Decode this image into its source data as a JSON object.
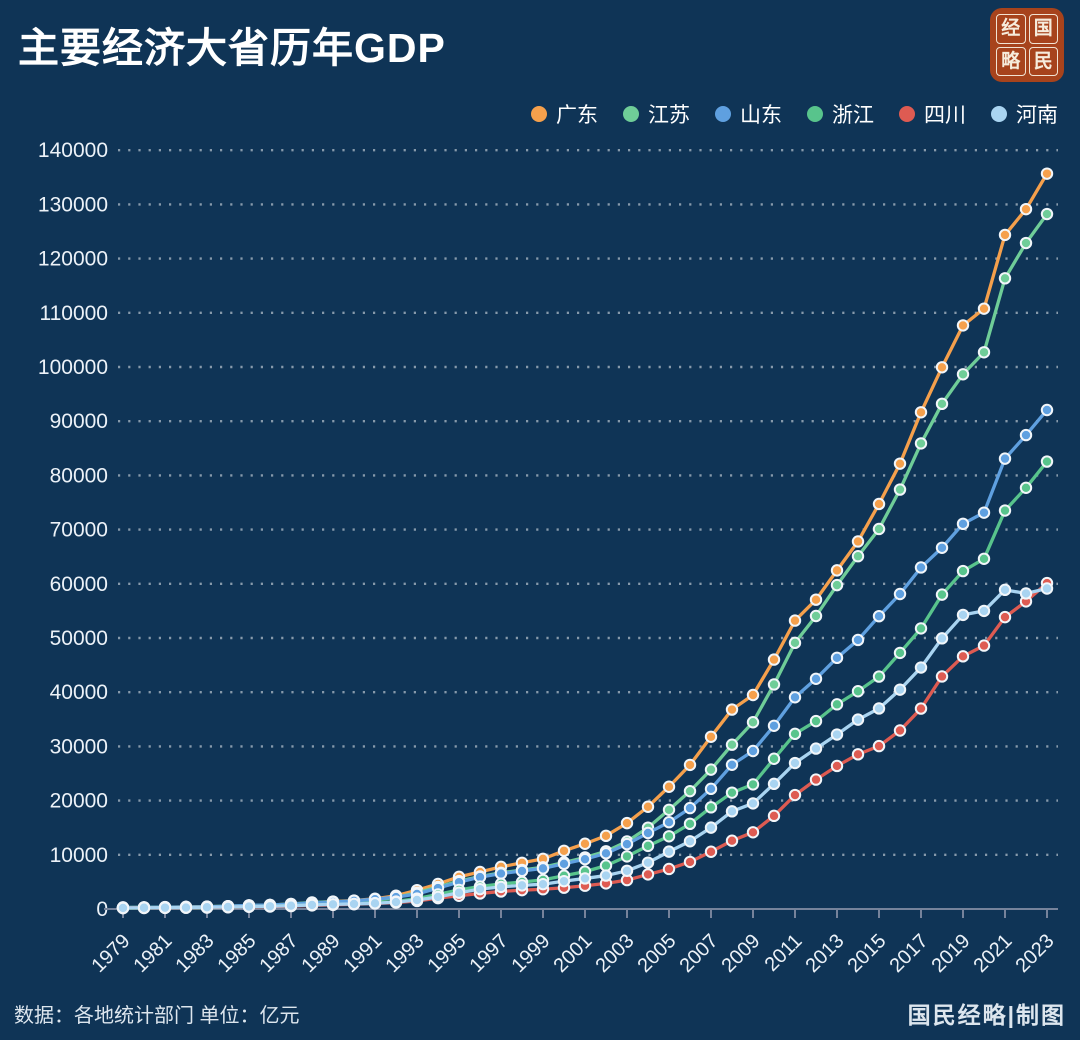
{
  "header": {
    "title": "主要经济大省历年GDP"
  },
  "logo": {
    "chars": [
      "经",
      "国",
      "略",
      "民"
    ],
    "bg_color": "#A7431C"
  },
  "footer": {
    "source": "数据：各地统计部门 单位：亿元",
    "credit": "国民经略|制图"
  },
  "colors": {
    "background": "#0F3456",
    "grid": "rgba(255,255,255,0.5)",
    "axis": "#76839B",
    "tick_text": "#ECF2F8",
    "marker_ring": "#F2F6FA"
  },
  "chart_data": {
    "type": "line",
    "title": "主要经济大省历年GDP",
    "unit": "亿元",
    "xlabel": "",
    "ylabel": "",
    "ylim": [
      0,
      140000
    ],
    "y_tick_step": 10000,
    "x_tick_step": 2,
    "grid": "dotted-horizontal",
    "legend_position": "top-right",
    "x": [
      1979,
      1980,
      1981,
      1982,
      1983,
      1984,
      1985,
      1986,
      1987,
      1988,
      1989,
      1990,
      1991,
      1992,
      1993,
      1994,
      1995,
      1996,
      1997,
      1998,
      1999,
      2000,
      2001,
      2002,
      2003,
      2004,
      2005,
      2006,
      2007,
      2008,
      2009,
      2010,
      2011,
      2012,
      2013,
      2014,
      2015,
      2016,
      2017,
      2018,
      2019,
      2020,
      2021,
      2022,
      2023
    ],
    "series": [
      {
        "id": "guangdong",
        "name": "广东",
        "color": "#F5A04C",
        "values": [
          249.7,
          290.4,
          324.5,
          370.2,
          420.5,
          510.2,
          640.3,
          731.4,
          917.2,
          1155.4,
          1381.4,
          1559.0,
          1893.3,
          2447.5,
          3469.3,
          4619.0,
          5933.1,
          6835.0,
          7774.5,
          8530.9,
          9250.7,
          10741.3,
          12039.3,
          13502.4,
          15844.6,
          18864.6,
          22557.4,
          26587.8,
          31777.0,
          36796.7,
          39482.6,
          46013.1,
          53210.3,
          57067.9,
          62474.8,
          67809.9,
          74732.2,
          82163.2,
          91648.7,
          99945.2,
          107671.1,
          110760.9,
          124369.7,
          129118.6,
          135673.2
        ]
      },
      {
        "id": "jiangsu",
        "name": "江苏",
        "color": "#6FCD98",
        "values": [
          299.0,
          319.8,
          350.7,
          390.2,
          438.3,
          519.7,
          651.8,
          744.9,
          922.3,
          1208.7,
          1321.9,
          1416.5,
          1601.4,
          2136.0,
          2998.2,
          4057.4,
          5155.3,
          6004.2,
          6680.3,
          7200.0,
          7697.8,
          8582.7,
          9511.9,
          10631.8,
          12460.8,
          15003.6,
          18305.7,
          21742.1,
          25715.4,
          30312.6,
          34457.3,
          41425.5,
          49110.3,
          54058.2,
          59753.4,
          65088.3,
          70116.4,
          77388.3,
          85900.9,
          93207.6,
          98656.8,
          102719.0,
          116364.2,
          122875.6,
          128222.2
        ]
      },
      {
        "id": "shandong",
        "name": "山东",
        "color": "#5FA0E0",
        "values": [
          257.8,
          292.1,
          318.8,
          368.1,
          420.4,
          496.7,
          680.5,
          742.9,
          892.3,
          1117.5,
          1293.2,
          1511.2,
          1810.5,
          2196.5,
          2770.4,
          3872.2,
          4953.4,
          5883.8,
          6537.1,
          7021.4,
          7493.8,
          8337.5,
          9195.0,
          10275.5,
          11970.0,
          14020.0,
          16012.0,
          18617.0,
          22170.0,
          26608.0,
          29150.0,
          33806.0,
          39064.9,
          42472.9,
          46343.9,
          49637.0,
          54024.0,
          58118.0,
          63012.1,
          66648.9,
          71067.5,
          73129.0,
          83095.9,
          87435.1,
          92068.7
        ]
      },
      {
        "id": "zhejiang",
        "name": "浙江",
        "color": "#58C48C",
        "values": [
          157.8,
          179.7,
          204.9,
          234.0,
          257.1,
          323.3,
          429.2,
          502.5,
          607.0,
          770.3,
          849.4,
          904.7,
          1089.3,
          1375.7,
          1925.9,
          2689.3,
          3524.8,
          4146.1,
          4638.2,
          4987.5,
          5364.9,
          6141.0,
          6898.3,
          8003.7,
          9705.0,
          11648.7,
          13417.7,
          15718.5,
          18753.7,
          21462.7,
          22990.4,
          27722.3,
          32318.9,
          34665.3,
          37756.6,
          40173.0,
          42886.5,
          47251.4,
          51768.3,
          58002.8,
          62351.7,
          64613.3,
          73515.8,
          77715.4,
          82553.2
        ]
      },
      {
        "id": "sichuan",
        "name": "四川",
        "color": "#DE5B52",
        "values": [
          205.0,
          229.3,
          243.0,
          265.0,
          296.0,
          339.0,
          421.0,
          459.0,
          536.0,
          666.0,
          756.0,
          891.0,
          1016.0,
          1177.0,
          1486.0,
          2001.0,
          2443.0,
          2871.0,
          3241.5,
          3474.1,
          3649.1,
          3928.2,
          4293.5,
          4725.0,
          5333.1,
          6379.6,
          7385.1,
          8690.2,
          10562.4,
          12601.2,
          14151.3,
          17185.5,
          21026.7,
          23872.8,
          26392.1,
          28536.7,
          30053.1,
          32934.5,
          36980.2,
          42902.1,
          46615.8,
          48598.8,
          53850.8,
          56749.8,
          60132.9
        ]
      },
      {
        "id": "henan",
        "name": "河南",
        "color": "#A9D4F1",
        "values": [
          194.0,
          229.2,
          249.7,
          263.3,
          327.3,
          370.3,
          451.7,
          502.8,
          609.1,
          749.1,
          859.1,
          934.7,
          1045.7,
          1279.8,
          1660.2,
          2224.4,
          3002.7,
          3661.2,
          4079.3,
          4356.6,
          4576.1,
          5137.7,
          5640.1,
          6168.7,
          7048.6,
          8553.8,
          10587.4,
          12496.0,
          15012.5,
          18018.5,
          19480.5,
          23092.4,
          26931.0,
          29599.3,
          32191.3,
          34938.2,
          37002.2,
          40471.8,
          44553.0,
          49935.9,
          54259.2,
          54997.1,
          58887.4,
          58220.1,
          59132.4
        ]
      }
    ]
  }
}
